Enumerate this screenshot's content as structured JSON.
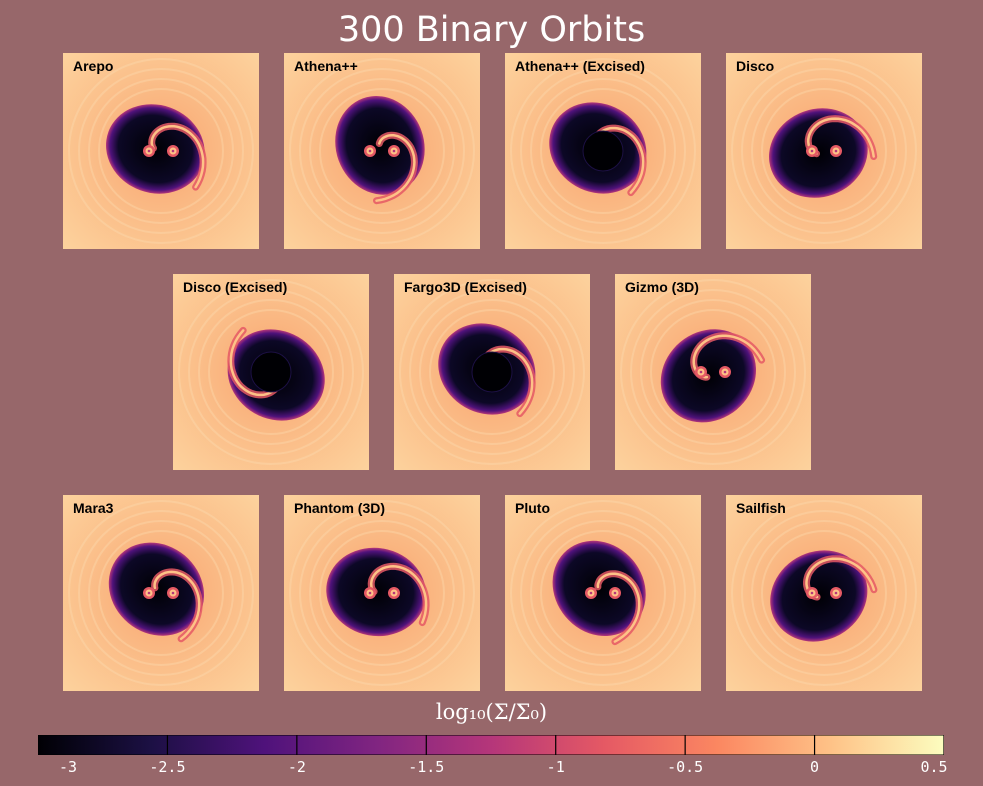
{
  "title": "300 Binary Orbits",
  "panels": [
    {
      "label": "Arepo"
    },
    {
      "label": "Athena++"
    },
    {
      "label": "Athena++ (Excised)"
    },
    {
      "label": "Disco"
    },
    {
      "label": "Disco (Excised)"
    },
    {
      "label": "Fargo3D (Excised)"
    },
    {
      "label": "Gizmo (3D)"
    },
    {
      "label": "Mara3"
    },
    {
      "label": "Phantom (3D)"
    },
    {
      "label": "Pluto"
    },
    {
      "label": "Sailfish"
    }
  ],
  "colorbar": {
    "label": "log₁₀(Σ/Σ₀)",
    "ticks": [
      "-3",
      "-2.5",
      "-2",
      "-1.5",
      "-1",
      "-0.5",
      "0",
      "0.5"
    ],
    "range": [
      -3,
      0.5
    ],
    "colormap": "magma",
    "colors": [
      "#000004",
      "#1c1044",
      "#4f127b",
      "#812581",
      "#b5367a",
      "#e55964",
      "#fb8761",
      "#fec287",
      "#fcfdbf"
    ]
  },
  "background_color": "#97676a"
}
